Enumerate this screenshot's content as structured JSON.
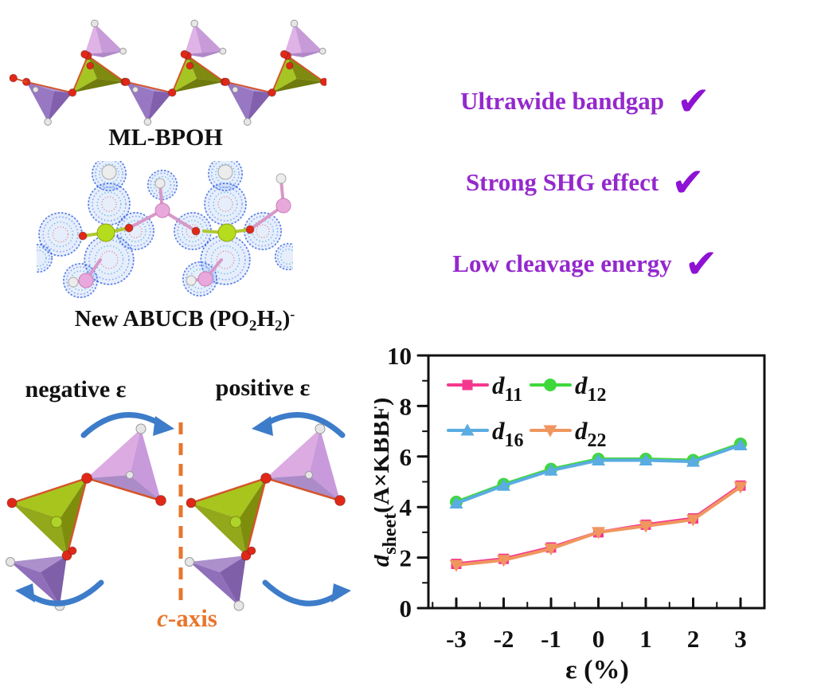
{
  "panels": {
    "ml_bpoh": {
      "label": "ML-BPOH"
    },
    "abucb": {
      "label_parts": [
        {
          "t": "New ABUCB (PO"
        },
        {
          "t": "2",
          "sub": true
        },
        {
          "t": "H"
        },
        {
          "t": "2",
          "sub": true
        },
        {
          "t": ")"
        },
        {
          "t": "-",
          "sup": true
        }
      ]
    }
  },
  "features": {
    "text_color": "#9428CD",
    "check_color": "#8E12D4",
    "check_glyph": "✔",
    "items": [
      {
        "text": "Ultrawide bandgap"
      },
      {
        "text": "Strong SHG effect"
      },
      {
        "text": "Low cleavage energy"
      }
    ]
  },
  "strain": {
    "negative_label": "negative ε",
    "positive_label": "positive ε",
    "axis_label_parts": [
      {
        "t": "c",
        "italic": true
      },
      {
        "t": "-axis"
      }
    ],
    "axis_color": "#E8762C",
    "arrow_color": "#3D7CC9"
  },
  "structure_colors": {
    "olive_dark": "#7E8B10",
    "olive_bright": "#A6C424",
    "purple": "#8A68B4",
    "pink_lavender": "#D9A9E2",
    "oxygen_red": "#E02818",
    "hydrogen_white": "#E6E6E6",
    "density_blue": "#2A5AE0"
  },
  "chart_data": {
    "type": "line",
    "x": [
      -3,
      -2,
      -1,
      0,
      1,
      2,
      3
    ],
    "xlabel": "ε (%)",
    "ylabel_text": "d_sheet(Å×KBBF)",
    "ylabel_parts": [
      {
        "t": "d",
        "italic": true
      },
      {
        "t": "sheet",
        "sub": true
      },
      {
        "t": "(Å×KBBF)"
      }
    ],
    "xlim": [
      -3.6,
      3.5
    ],
    "ylim": [
      0,
      10
    ],
    "xticks": [
      -3,
      -2,
      -1,
      0,
      1,
      2,
      3
    ],
    "yticks": [
      0,
      2,
      4,
      6,
      8,
      10
    ],
    "grid": false,
    "legend_position": "upper-left-inside",
    "series": [
      {
        "name": "d11",
        "label_parts": [
          {
            "t": "d",
            "italic": true
          },
          {
            "t": "11",
            "sub": true
          }
        ],
        "color": "#F5388F",
        "marker": "square",
        "values": [
          1.75,
          1.95,
          2.4,
          3.0,
          3.3,
          3.55,
          4.85
        ]
      },
      {
        "name": "d12",
        "label_parts": [
          {
            "t": "d",
            "italic": true
          },
          {
            "t": "12",
            "sub": true
          }
        ],
        "color": "#3FD83C",
        "marker": "circle",
        "values": [
          4.2,
          4.9,
          5.5,
          5.9,
          5.9,
          5.85,
          6.5
        ]
      },
      {
        "name": "d16",
        "label_parts": [
          {
            "t": "d",
            "italic": true
          },
          {
            "t": "16",
            "sub": true
          }
        ],
        "color": "#5AACE2",
        "marker": "triangle-up",
        "values": [
          4.15,
          4.85,
          5.45,
          5.85,
          5.85,
          5.8,
          6.45
        ]
      },
      {
        "name": "d22",
        "label_parts": [
          {
            "t": "d",
            "italic": true
          },
          {
            "t": "22",
            "sub": true
          }
        ],
        "color": "#F0965F",
        "marker": "triangle-down",
        "values": [
          1.7,
          1.9,
          2.35,
          3.0,
          3.25,
          3.5,
          4.8
        ]
      }
    ]
  }
}
